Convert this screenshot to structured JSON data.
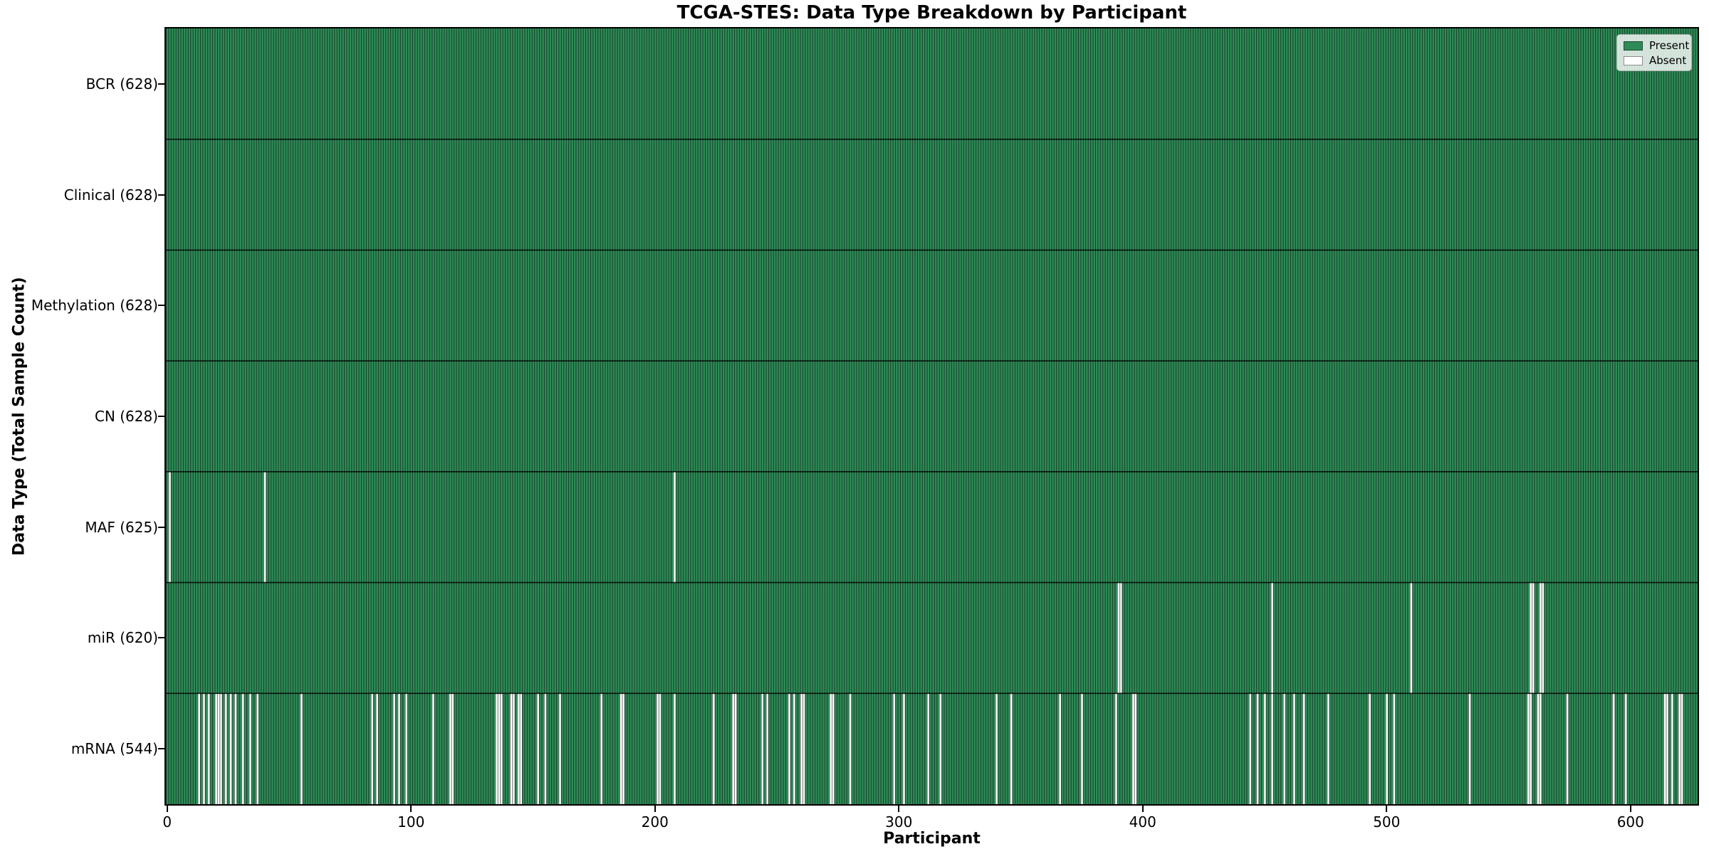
{
  "chart_data": {
    "type": "heatmap",
    "title": "TCGA-STES: Data Type Breakdown by Participant",
    "xlabel": "Participant",
    "ylabel": "Data Type (Total Sample Count)",
    "n_participants": 628,
    "xlim": [
      -0.5,
      627.5
    ],
    "x_ticks": [
      0,
      100,
      200,
      300,
      400,
      500,
      600
    ],
    "grid": false,
    "legend": {
      "position": "upper right",
      "entries": [
        {
          "label": "Present",
          "color": "#2e8b57"
        },
        {
          "label": "Absent",
          "color": "#ffffff"
        }
      ]
    },
    "colors": {
      "present": "#2e8b57",
      "absent": "#ffffff",
      "bar_edge": "rgba(0,0,0,0.6)",
      "row_divider": "rgba(0,0,0,0.85)",
      "spine": "#000000"
    },
    "rows": [
      {
        "label": "BCR (628)",
        "name": "BCR",
        "total_count": 628,
        "absent_participants": []
      },
      {
        "label": "Clinical (628)",
        "name": "Clinical",
        "total_count": 628,
        "absent_participants": []
      },
      {
        "label": "Methylation (628)",
        "name": "Methylation",
        "total_count": 628,
        "absent_participants": []
      },
      {
        "label": "CN (628)",
        "name": "CN",
        "total_count": 628,
        "absent_participants": []
      },
      {
        "label": "MAF (625)",
        "name": "MAF",
        "total_count": 625,
        "absent_participants": [
          1,
          40,
          208
        ]
      },
      {
        "label": "miR (620)",
        "name": "miR",
        "total_count": 620,
        "absent_participants": [
          390,
          391,
          453,
          510,
          559,
          560,
          563,
          564
        ]
      },
      {
        "label": "mRNA (544)",
        "name": "mRNA",
        "total_count": 544,
        "absent_participants": [
          13,
          15,
          17,
          20,
          21,
          22,
          24,
          26,
          28,
          31,
          34,
          37,
          55,
          84,
          86,
          93,
          95,
          98,
          109,
          116,
          117,
          135,
          136,
          137,
          141,
          142,
          144,
          145,
          152,
          155,
          161,
          178,
          186,
          187,
          201,
          202,
          208,
          224,
          232,
          233,
          244,
          246,
          255,
          257,
          260,
          261,
          272,
          273,
          280,
          298,
          302,
          312,
          317,
          340,
          346,
          366,
          375,
          389,
          396,
          397,
          444,
          447,
          450,
          453,
          458,
          462,
          466,
          476,
          493,
          500,
          503,
          534,
          558,
          559,
          562,
          563,
          574,
          593,
          598,
          614,
          615,
          617,
          620,
          621
        ]
      }
    ]
  }
}
